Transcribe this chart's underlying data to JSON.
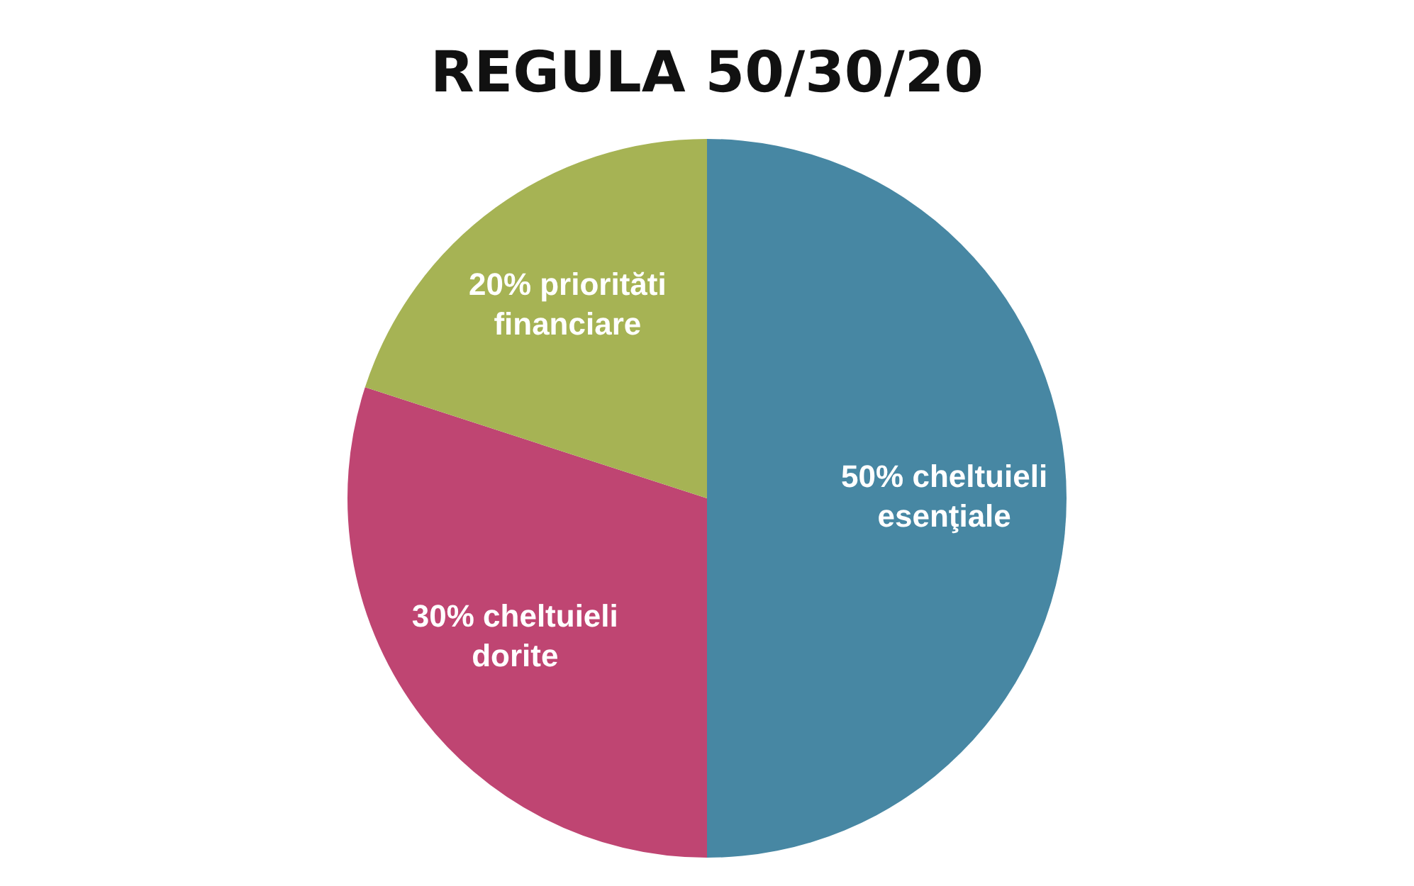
{
  "chart_data": {
    "type": "pie",
    "title": "REGULA 50/30/20",
    "categories": [
      "cheltuieli esenţiale",
      "cheltuieli dorite",
      "priorităti financiare"
    ],
    "values": [
      50,
      30,
      20
    ],
    "value_labels": [
      "50%",
      "30%",
      "20%"
    ],
    "colors": [
      "#4787a3",
      "#bf4572",
      "#a6b354"
    ],
    "legend": false
  }
}
